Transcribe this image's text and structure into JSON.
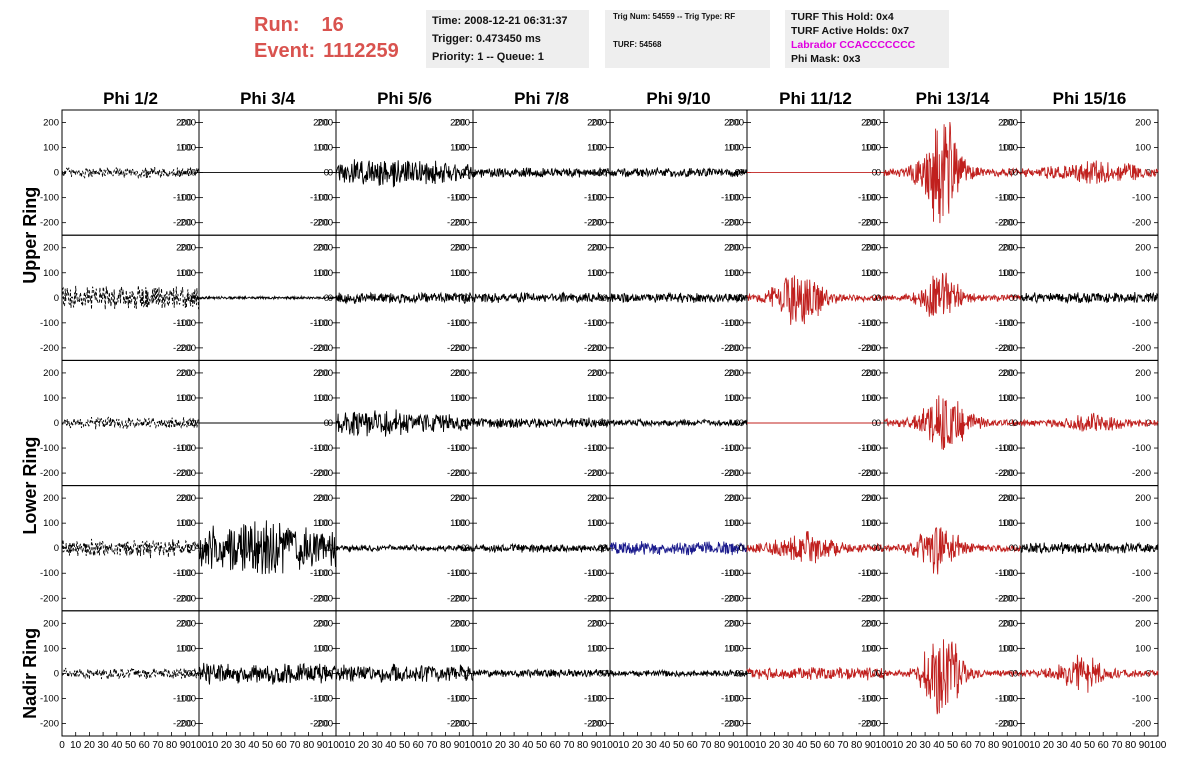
{
  "header": {
    "run_label": "Run:",
    "run_value": "16",
    "event_label": "Event:",
    "event_value": "1112259",
    "time": "Time: 2008-12-21 06:31:37",
    "trigger": "Trigger: 0.473450 ms",
    "priority": "Priority: 1 -- Queue: 1",
    "trig_num": "Trig Num: 54559 -- Trig Type: RF",
    "turf": "TURF: 54568",
    "turf_hold": "TURF This Hold: 0x4",
    "turf_active": "TURF Active Holds: 0x7",
    "labrador": "Labrador CCACCCCCCC",
    "phi_mask": "Phi Mask: 0x3"
  },
  "colors": {
    "run_text": "#d9534f",
    "labrador_text": "#e000e0",
    "trace_black": "#000000",
    "trace_red": "#c0201e",
    "trace_blue": "#1a1a8c",
    "info_bg": "#eeeeee"
  },
  "chart_data": {
    "type": "line",
    "columns": [
      "Phi 1/2",
      "Phi 3/4",
      "Phi 5/6",
      "Phi 7/8",
      "Phi 9/10",
      "Phi 11/12",
      "Phi 13/14",
      "Phi 15/16"
    ],
    "row_labels": [
      "Upper Ring",
      "Lower Ring",
      "Nadir Ring"
    ],
    "panel_rows": 5,
    "ylim": [
      -250,
      250
    ],
    "xlim": [
      0,
      100
    ],
    "yticks": [
      -200,
      -100,
      0,
      100,
      200
    ],
    "xticks": [
      0,
      10,
      20,
      30,
      40,
      50,
      60,
      70,
      80,
      90,
      100
    ],
    "panels": [
      [
        {
          "color": "black",
          "style": "dashed",
          "amp": 25,
          "burst": null
        },
        {
          "color": "black",
          "style": "flat",
          "amp": 0,
          "burst": null
        },
        {
          "color": "black",
          "style": "solid",
          "amp": 55,
          "burst": [
            40,
            30,
            0.4
          ]
        },
        {
          "color": "black",
          "style": "solid",
          "amp": 22,
          "burst": null
        },
        {
          "color": "black",
          "style": "solid",
          "amp": 20,
          "burst": null
        },
        {
          "color": "red",
          "style": "flat",
          "amp": 0,
          "burst": null
        },
        {
          "color": "red",
          "style": "solid",
          "amp": 18,
          "burst": [
            42,
            10,
            240
          ]
        },
        {
          "color": "red",
          "style": "solid",
          "amp": 18,
          "burst": [
            55,
            20,
            45
          ]
        }
      ],
      [
        {
          "color": "black",
          "style": "dashed",
          "amp": 55,
          "burst": null
        },
        {
          "color": "black",
          "style": "solid",
          "amp": 6,
          "burst": null
        },
        {
          "color": "black",
          "style": "solid",
          "amp": 25,
          "burst": null
        },
        {
          "color": "black",
          "style": "solid",
          "amp": 22,
          "burst": null
        },
        {
          "color": "black",
          "style": "solid",
          "amp": 22,
          "burst": null
        },
        {
          "color": "red",
          "style": "solid",
          "amp": 15,
          "burst": [
            38,
            12,
            120
          ]
        },
        {
          "color": "red",
          "style": "solid",
          "amp": 15,
          "burst": [
            42,
            10,
            110
          ]
        },
        {
          "color": "black",
          "style": "solid",
          "amp": 25,
          "burst": null
        }
      ],
      [
        {
          "color": "black",
          "style": "dashed",
          "amp": 25,
          "burst": null
        },
        {
          "color": "black",
          "style": "flat",
          "amp": 0,
          "burst": null
        },
        {
          "color": "black",
          "style": "solid",
          "amp": 50,
          "burst": [
            30,
            30,
            0.3
          ]
        },
        {
          "color": "black",
          "style": "solid",
          "amp": 22,
          "burst": null
        },
        {
          "color": "black",
          "style": "solid",
          "amp": 15,
          "burst": null
        },
        {
          "color": "red",
          "style": "flat",
          "amp": 0,
          "burst": null
        },
        {
          "color": "red",
          "style": "solid",
          "amp": 15,
          "burst": [
            45,
            12,
            120
          ]
        },
        {
          "color": "red",
          "style": "solid",
          "amp": 15,
          "burst": [
            50,
            15,
            35
          ]
        }
      ],
      [
        {
          "color": "black",
          "style": "dashed",
          "amp": 40,
          "burst": null
        },
        {
          "color": "black",
          "style": "solid",
          "amp": 90,
          "burst": [
            45,
            20,
            40
          ]
        },
        {
          "color": "black",
          "style": "solid",
          "amp": 15,
          "burst": null
        },
        {
          "color": "black",
          "style": "solid",
          "amp": 18,
          "burst": null
        },
        {
          "color": "blue",
          "style": "solid",
          "amp": 30,
          "burst": null
        },
        {
          "color": "red",
          "style": "solid",
          "amp": 18,
          "burst": [
            42,
            15,
            60
          ]
        },
        {
          "color": "red",
          "style": "solid",
          "amp": 15,
          "burst": [
            40,
            10,
            110
          ]
        },
        {
          "color": "black",
          "style": "solid",
          "amp": 25,
          "burst": null
        }
      ],
      [
        {
          "color": "black",
          "style": "dashed",
          "amp": 25,
          "burst": null
        },
        {
          "color": "black",
          "style": "solid",
          "amp": 45,
          "burst": null
        },
        {
          "color": "black",
          "style": "solid",
          "amp": 40,
          "burst": null
        },
        {
          "color": "black",
          "style": "solid",
          "amp": 18,
          "burst": null
        },
        {
          "color": "black",
          "style": "solid",
          "amp": 15,
          "burst": null
        },
        {
          "color": "red",
          "style": "solid",
          "amp": 30,
          "burst": null
        },
        {
          "color": "red",
          "style": "solid",
          "amp": 15,
          "burst": [
            43,
            10,
            180
          ]
        },
        {
          "color": "red",
          "style": "solid",
          "amp": 15,
          "burst": [
            45,
            12,
            70
          ]
        }
      ]
    ]
  }
}
